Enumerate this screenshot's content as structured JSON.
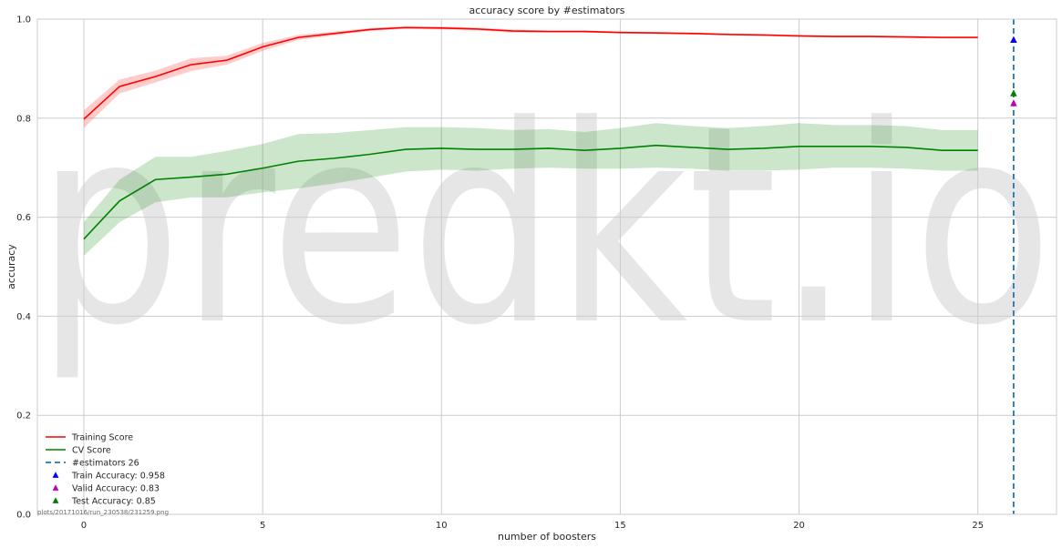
{
  "chart_data": {
    "type": "line",
    "title": "accuracy score by #estimators",
    "xlabel": "number of boosters",
    "ylabel": "accuracy",
    "xlim": [
      -1.3,
      27.2
    ],
    "ylim": [
      0.0,
      1.0
    ],
    "xticks": [
      0,
      5,
      10,
      15,
      20,
      25
    ],
    "yticks": [
      0.0,
      0.2,
      0.4,
      0.6,
      0.8,
      1.0
    ],
    "xtick_labels": [
      "0",
      "5",
      "10",
      "15",
      "20",
      "25"
    ],
    "ytick_labels": [
      "0.0",
      "0.2",
      "0.4",
      "0.6",
      "0.8",
      "1.0"
    ],
    "grid": true,
    "legend_position": "lower-left",
    "x": [
      0,
      1,
      2,
      3,
      4,
      5,
      6,
      7,
      8,
      9,
      10,
      11,
      12,
      13,
      14,
      15,
      16,
      17,
      18,
      19,
      20,
      21,
      22,
      23,
      24,
      25
    ],
    "series": [
      {
        "name": "Training Score",
        "color": "#ff0000",
        "band_color": "#ff0000",
        "values": [
          0.798,
          0.864,
          0.884,
          0.908,
          0.917,
          0.944,
          0.963,
          0.971,
          0.979,
          0.983,
          0.982,
          0.98,
          0.976,
          0.975,
          0.975,
          0.973,
          0.972,
          0.971,
          0.969,
          0.968,
          0.966,
          0.965,
          0.965,
          0.964,
          0.963,
          0.963
        ],
        "lower": [
          0.78,
          0.85,
          0.872,
          0.895,
          0.908,
          0.936,
          0.958,
          0.967,
          0.976,
          0.98,
          0.979,
          0.977,
          0.973,
          0.973,
          0.973,
          0.971,
          0.97,
          0.969,
          0.967,
          0.966,
          0.964,
          0.963,
          0.963,
          0.962,
          0.961,
          0.961
        ],
        "upper": [
          0.816,
          0.878,
          0.896,
          0.921,
          0.926,
          0.952,
          0.968,
          0.975,
          0.982,
          0.986,
          0.985,
          0.983,
          0.979,
          0.977,
          0.977,
          0.975,
          0.974,
          0.973,
          0.971,
          0.97,
          0.968,
          0.967,
          0.967,
          0.966,
          0.965,
          0.965
        ]
      },
      {
        "name": "CV Score",
        "color": "#008000",
        "band_color": "#008000",
        "values": [
          0.556,
          0.633,
          0.676,
          0.681,
          0.687,
          0.699,
          0.713,
          0.719,
          0.727,
          0.737,
          0.739,
          0.737,
          0.737,
          0.739,
          0.735,
          0.739,
          0.745,
          0.741,
          0.737,
          0.739,
          0.743,
          0.743,
          0.743,
          0.741,
          0.735,
          0.735
        ],
        "lower": [
          0.522,
          0.59,
          0.63,
          0.64,
          0.64,
          0.65,
          0.658,
          0.668,
          0.68,
          0.692,
          0.696,
          0.694,
          0.698,
          0.7,
          0.698,
          0.698,
          0.7,
          0.698,
          0.694,
          0.694,
          0.696,
          0.7,
          0.7,
          0.698,
          0.694,
          0.694
        ],
        "upper": [
          0.59,
          0.676,
          0.722,
          0.722,
          0.734,
          0.748,
          0.768,
          0.77,
          0.776,
          0.782,
          0.782,
          0.78,
          0.776,
          0.778,
          0.772,
          0.78,
          0.79,
          0.784,
          0.78,
          0.784,
          0.79,
          0.786,
          0.786,
          0.784,
          0.776,
          0.776
        ]
      }
    ],
    "vline": {
      "name": "#estimators 26",
      "x": 26,
      "color": "#1f77b4"
    },
    "markers": [
      {
        "name": "Train Accuracy: 0.958",
        "x": 26,
        "y": 0.958,
        "color": "#0000ff"
      },
      {
        "name": "Valid Accuracy: 0.83",
        "x": 26,
        "y": 0.83,
        "color": "#bf00bf"
      },
      {
        "name": "Test Accuracy: 0.85",
        "x": 26,
        "y": 0.85,
        "color": "#008000"
      }
    ],
    "footnote": "plots/20171016/run_230538/231259.png",
    "watermark": "predkt.io"
  }
}
